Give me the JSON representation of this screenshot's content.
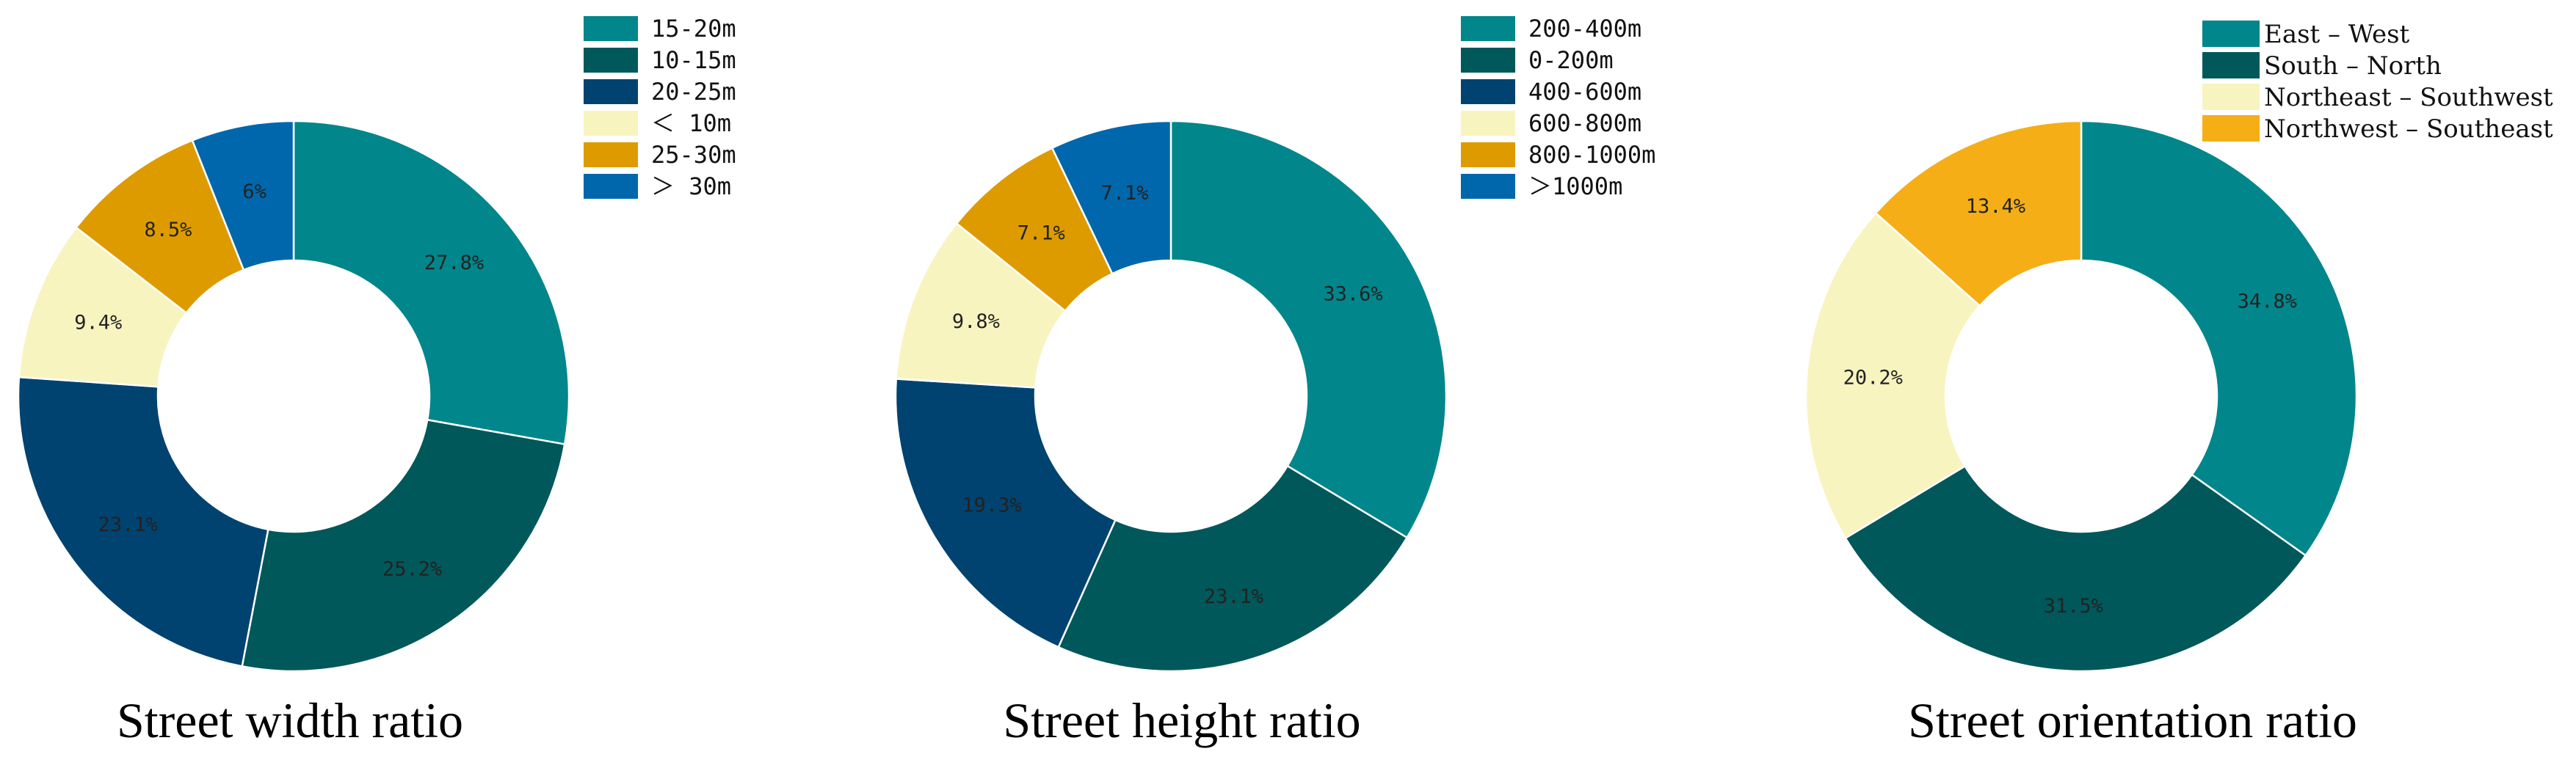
{
  "chart_data": [
    {
      "type": "pie",
      "title": "Street width ratio",
      "donut": true,
      "legend_position": "top-right",
      "categories": [
        "15-20m",
        "10-15m",
        "20-25m",
        "< 10m",
        "25-30m",
        "> 30m"
      ],
      "legend_labels": [
        "15-20m",
        "10-15m",
        "20-25m",
        "＜ 10m",
        "25-30m",
        "＞ 30m"
      ],
      "values": [
        27.8,
        25.2,
        23.1,
        9.4,
        8.5,
        6.0
      ],
      "labels": [
        "27.8%",
        "25.2%",
        "23.1%",
        "9.4%",
        "8.5%",
        "6%"
      ],
      "colors": [
        "#00868B",
        "#00585A",
        "#004370",
        "#F7F4C0",
        "#DE9B00",
        "#0067AC"
      ]
    },
    {
      "type": "pie",
      "title": "Street height ratio",
      "donut": true,
      "legend_position": "top-right",
      "categories": [
        "200-400m",
        "0-200m",
        "400-600m",
        "600-800m",
        "800-1000m",
        "> 1000m"
      ],
      "legend_labels": [
        "200-400m",
        "0-200m",
        "400-600m",
        "600-800m",
        "800-1000m",
        "＞1000m"
      ],
      "values": [
        33.6,
        23.1,
        19.3,
        9.8,
        7.1,
        7.1
      ],
      "labels": [
        "33.6%",
        "23.1%",
        "19.3%",
        "9.8%",
        "7.1%",
        "7.1%"
      ],
      "colors": [
        "#00868B",
        "#00585A",
        "#004370",
        "#F7F4C0",
        "#DE9B00",
        "#0067AC"
      ]
    },
    {
      "type": "pie",
      "title": "Street orientation ratio",
      "donut": true,
      "legend_position": "top-right",
      "categories": [
        "East - West",
        "South - North",
        "Northeast - Southwest",
        "Northwest - Southeast"
      ],
      "legend_labels": [
        "East – West",
        "South – North",
        "Northeast – Southwest",
        "Northwest – Southeast"
      ],
      "values": [
        34.8,
        31.5,
        20.2,
        13.4
      ],
      "labels": [
        "34.8%",
        "31.5%",
        "20.2%",
        "13.4%"
      ],
      "colors": [
        "#00868B",
        "#00585A",
        "#F7F4C0",
        "#F5AE16"
      ]
    }
  ]
}
